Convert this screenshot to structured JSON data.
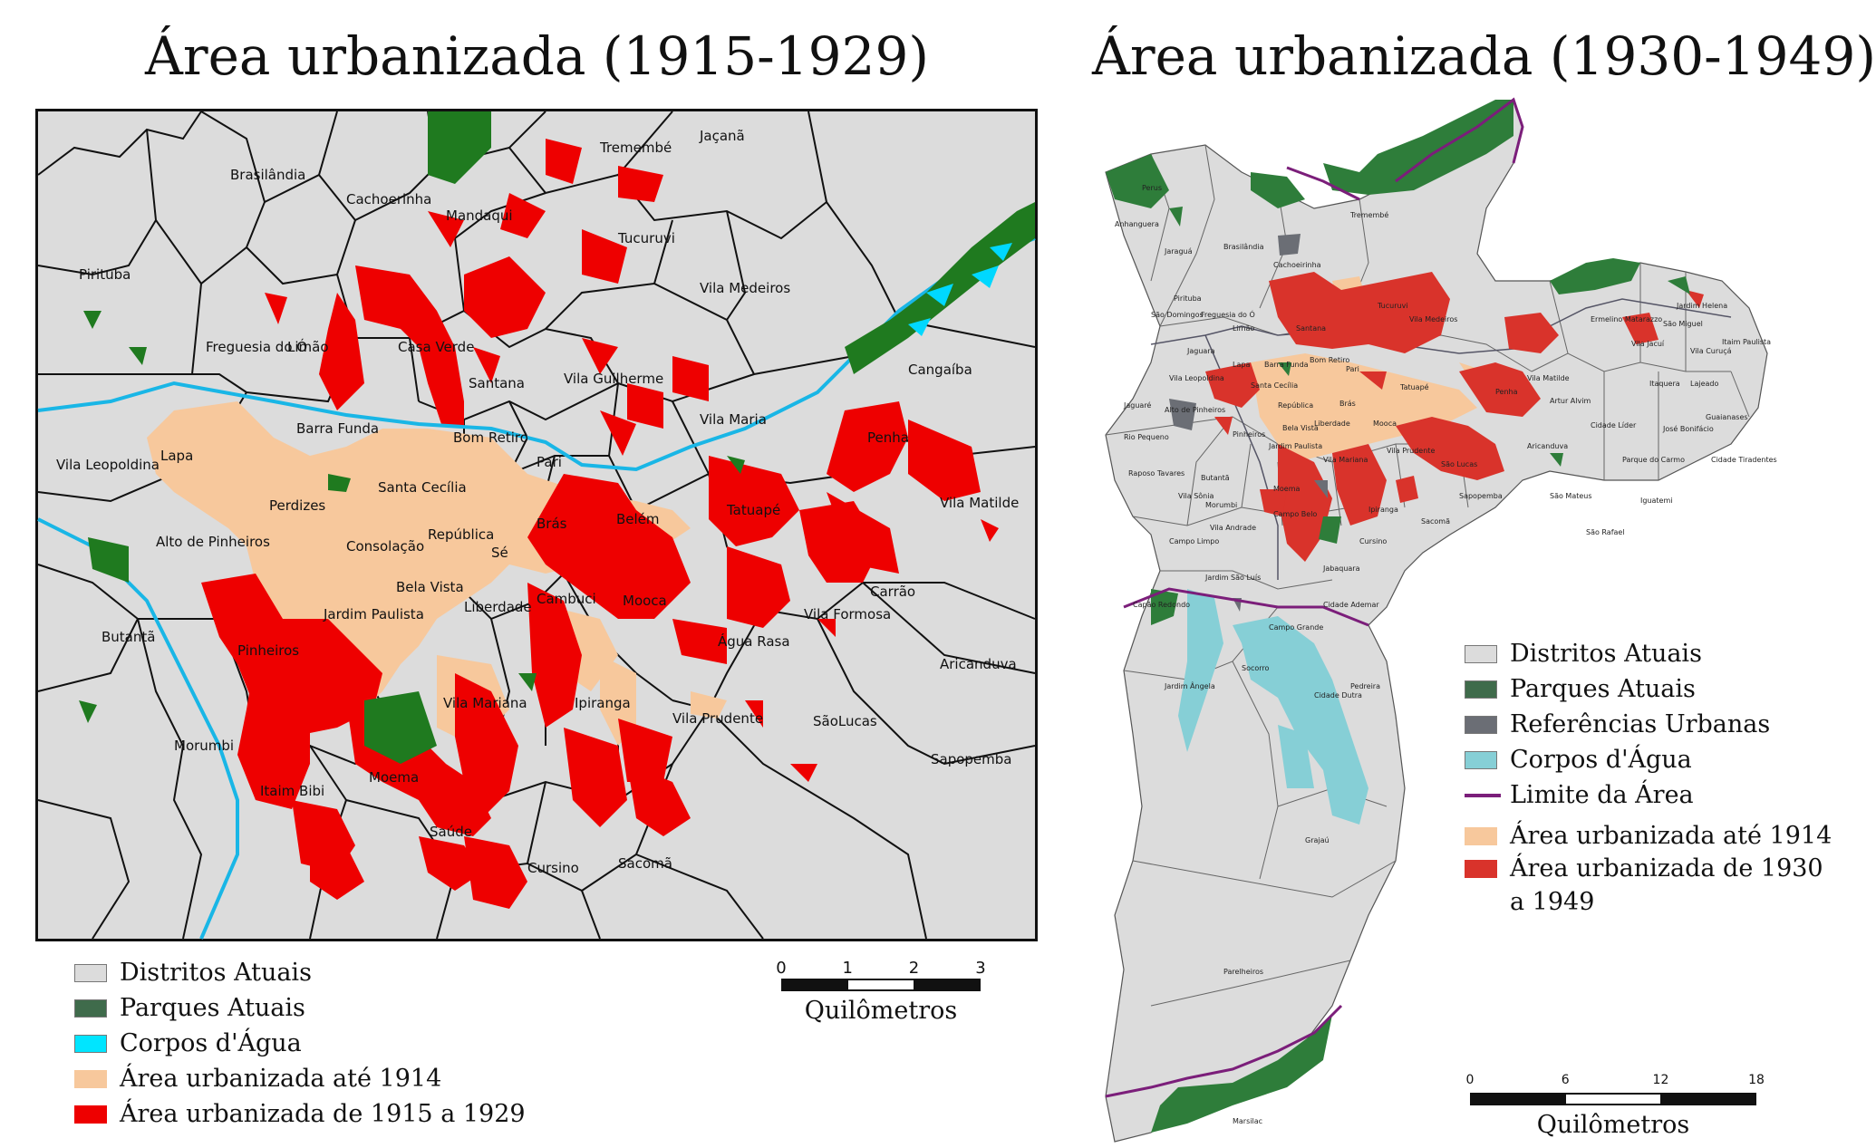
{
  "left": {
    "title": "Área urbanizada (1915-1929)",
    "districts": [
      "Tremembé",
      "Jaçanã",
      "Brasilândia",
      "Cachoerinha",
      "Mandaqui",
      "Tucuruvi",
      "Pirituba",
      "Vila Medeiros",
      "Freguesia do Ó",
      "Limão",
      "Casa Verde",
      "Santana",
      "Vila Guilherme",
      "Vila Maria",
      "Cangaíba",
      "Barra Funda",
      "Lapa",
      "Vila Leopoldina",
      "Bom Retiro",
      "Pari",
      "Penha",
      "Santa Cecília",
      "Perdizes",
      "Tatuapé",
      "Vila Matilde",
      "Alto de Pinheiros",
      "Brás",
      "Belém",
      "República",
      "Consolação",
      "Sé",
      "Carrão",
      "Bela Vista",
      "Jardim Paulista",
      "Liberdade",
      "Cambuci",
      "Mooca",
      "Vila Formosa",
      "Butantã",
      "Pinheiros",
      "Água Rasa",
      "Aricanduva",
      "Vila Mariana",
      "Ipiranga",
      "Vila Prudente",
      "SãoLucas",
      "Morumbi",
      "Moema",
      "Sapopemba",
      "Itaim Bibi",
      "Saúde",
      "Cursino",
      "Sacomã"
    ],
    "legend": [
      "Distritos Atuais",
      "Parques Atuais",
      "Corpos d'Água",
      "Área urbanizada até 1914",
      "Área urbanizada de 1915 a 1929"
    ],
    "scale": {
      "ticks": [
        "0",
        "1",
        "2",
        "3"
      ],
      "unit": "Quilômetros"
    }
  },
  "right": {
    "title": "Área urbanizada (1930-1949)",
    "districts": [
      "Perus",
      "Anhanguera",
      "Tremembé",
      "Jaraguá",
      "Brasilândia",
      "Cachoeirinha",
      "Pirituba",
      "São Domingos",
      "Freguesia do Ó",
      "Limão",
      "Santana",
      "Tucuruvi",
      "Vila Medeiros",
      "Jardim Helena",
      "Vila Jacuí",
      "Itaim Paulista",
      "Jaguara",
      "Vila Leopoldina",
      "Lapa",
      "Barra Funda",
      "Bom Retiro",
      "Pari",
      "Penha",
      "Vila Matilde",
      "Ermelino Matarazzo",
      "São Miguel",
      "Vila Curuçá",
      "Jaguaré",
      "Alto de Pinheiros",
      "Santa Cecília",
      "República",
      "Brás",
      "Tatuapé",
      "Artur Alvim",
      "Itaquera",
      "Lajeado",
      "Rio Pequeno",
      "Pinheiros",
      "Bela Vista",
      "Liberdade",
      "Mooca",
      "Aricanduva",
      "Cidade Líder",
      "José Bonifácio",
      "Guaianases",
      "Raposo Tavares",
      "Butantã",
      "Jardim Paulista",
      "Vila Mariana",
      "Vila Prudente",
      "São Lucas",
      "Parque do Carmo",
      "Cidade Tiradentes",
      "Vila Sônia",
      "Morumbi",
      "Moema",
      "Sapopemba",
      "São Mateus",
      "Iguatemi",
      "Campo Limpo",
      "Vila Andrade",
      "Campo Belo",
      "Ipiranga",
      "Sacomã",
      "São Rafael",
      "Jardim São Luís",
      "Cursino",
      "Capão Redondo",
      "Campo Grande",
      "Jabaquara",
      "Cidade Ademar",
      "Socorro",
      "Cidade Dutra",
      "Pedreira",
      "Jardim Ângela",
      "Grajaú",
      "Parelheiros",
      "Marsilac"
    ],
    "legend": [
      "Distritos Atuais",
      "Parques Atuais",
      "Referências Urbanas",
      "Corpos d'Água",
      "Limite da Área",
      "Área urbanizada até 1914",
      "Área urbanizada de 1930",
      "a 1949"
    ],
    "scale": {
      "ticks": [
        "0",
        "6",
        "12",
        "18"
      ],
      "unit": "Quilômetros"
    }
  },
  "colors": {
    "district_fill": "#dcdcdc",
    "park": "#1f7a1f",
    "park_legend": "#3f6b4b",
    "water": "#00d8ff",
    "water_right": "#86cfd6",
    "urban_1914": "#f7c89c",
    "urban_new_left": "#ee0000",
    "urban_new_right": "#d9332b",
    "reference": "#6b6e75",
    "limit": "#7b1e7a"
  }
}
